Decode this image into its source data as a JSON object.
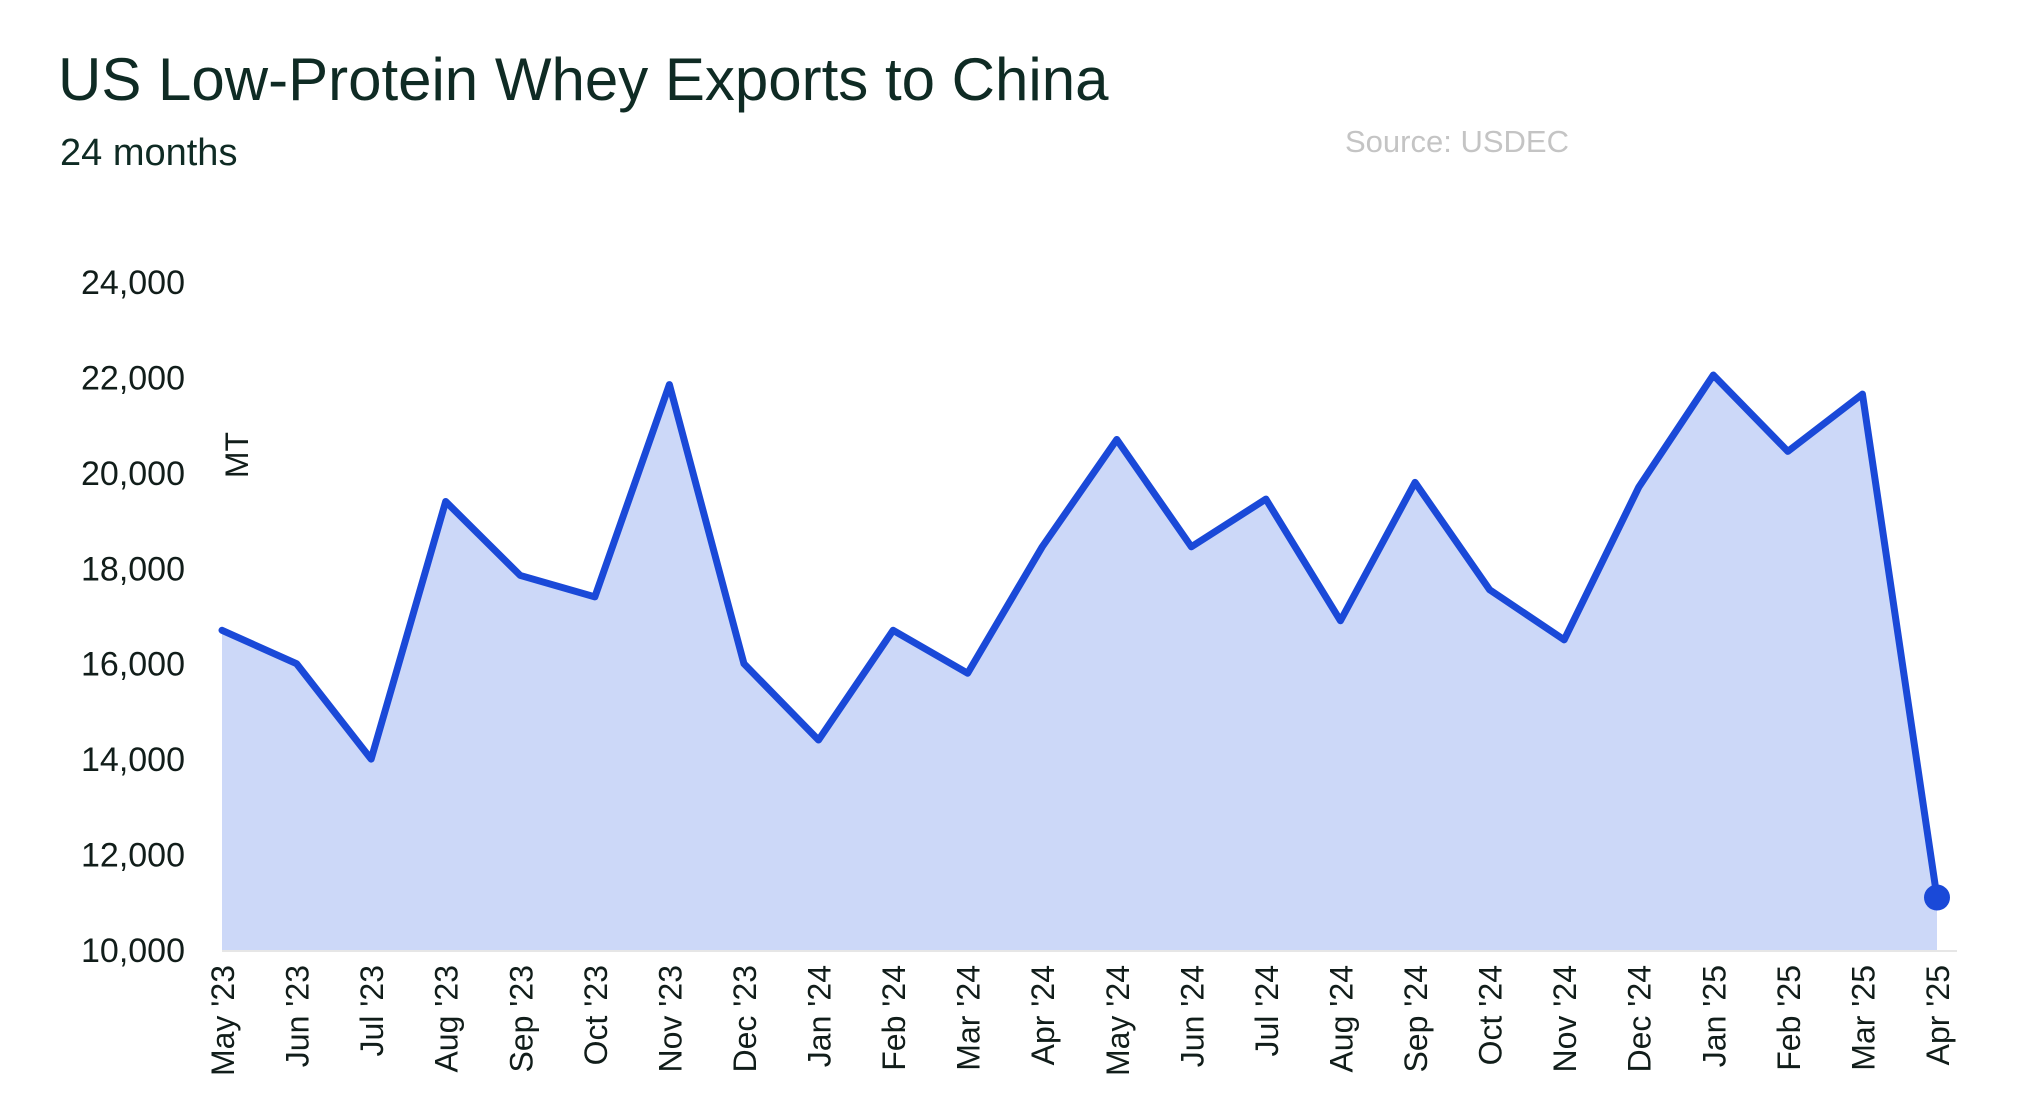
{
  "header": {
    "title": "US Low-Protein Whey Exports to China",
    "subtitle": "24 months",
    "source": "Source: USDEC"
  },
  "colors": {
    "line": "#1a49d8",
    "fill": "#ccd8f8",
    "text": "#111d1a",
    "source_text": "#c4c4c4"
  },
  "chart_data": {
    "type": "area",
    "title": "US Low-Protein Whey Exports to China",
    "subtitle": "24 months",
    "xlabel": "",
    "ylabel": "MT",
    "ylim": [
      10000,
      24000
    ],
    "yticks": [
      10000,
      12000,
      14000,
      16000,
      18000,
      20000,
      22000,
      24000
    ],
    "ytick_labels": [
      "10,000",
      "12,000",
      "14,000",
      "16,000",
      "18,000",
      "20,000",
      "22,000",
      "24,000"
    ],
    "grid": false,
    "legend": "none",
    "categories": [
      "May '23",
      "Jun '23",
      "Jul '23",
      "Aug '23",
      "Sep '23",
      "Oct '23",
      "Nov '23",
      "Dec '23",
      "Jan '24",
      "Feb '24",
      "Mar '24",
      "Apr '24",
      "May '24",
      "Jun '24",
      "Jul '24",
      "Aug '24",
      "Sep '24",
      "Oct '24",
      "Nov '24",
      "Dec '24",
      "Jan '25",
      "Feb '25",
      "Mar '25",
      "Apr '25"
    ],
    "values": [
      16700,
      16000,
      14000,
      19400,
      17850,
      17400,
      21850,
      16000,
      14400,
      16700,
      15800,
      18450,
      20700,
      18450,
      19450,
      16900,
      19800,
      17550,
      16500,
      19700,
      22050,
      20450,
      21650,
      11100
    ],
    "highlight_last_point": true
  }
}
